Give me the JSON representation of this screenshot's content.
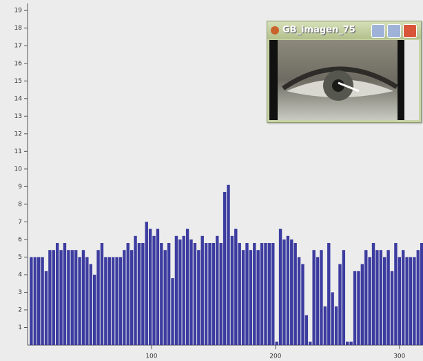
{
  "window": {
    "title": "GB_imagen_75"
  },
  "chart_data": {
    "type": "bar",
    "color": "#3c3ca0",
    "x": [
      3,
      6,
      9,
      12,
      15,
      18,
      21,
      24,
      27,
      30,
      33,
      36,
      39,
      42,
      45,
      48,
      51,
      54,
      57,
      60,
      63,
      66,
      69,
      72,
      75,
      78,
      81,
      84,
      87,
      90,
      93,
      96,
      99,
      102,
      105,
      108,
      111,
      114,
      117,
      120,
      123,
      126,
      129,
      132,
      135,
      138,
      141,
      144,
      147,
      150,
      153,
      156,
      159,
      162,
      165,
      168,
      171,
      174,
      177,
      180,
      183,
      186,
      189,
      192,
      195,
      198,
      201,
      204,
      207,
      210,
      213,
      216,
      219,
      222,
      225,
      228,
      231,
      234,
      237,
      240,
      243,
      246,
      249,
      252,
      255,
      258,
      261,
      264,
      267,
      270,
      273,
      276,
      279,
      282,
      285,
      288,
      291,
      294,
      297,
      300,
      303,
      306,
      309,
      312,
      315,
      318
    ],
    "values": [
      5,
      5,
      5,
      5,
      4.2,
      5.4,
      5.4,
      5.8,
      5.4,
      5.8,
      5.4,
      5.4,
      5.4,
      5,
      5.4,
      5,
      4.6,
      4,
      5.4,
      5.8,
      5,
      5,
      5,
      5,
      5,
      5.4,
      5.8,
      5.4,
      6.2,
      5.8,
      5.8,
      7,
      6.6,
      6.2,
      6.6,
      5.8,
      5.4,
      5.8,
      3.8,
      6.2,
      6,
      6.2,
      6.6,
      6,
      5.8,
      5.4,
      6.2,
      5.8,
      5.8,
      5.8,
      6.2,
      5.8,
      8.7,
      9.1,
      6.2,
      6.6,
      5.8,
      5.4,
      5.8,
      5.4,
      5.8,
      5.4,
      5.8,
      5.8,
      5.8,
      5.8,
      0.2,
      6.6,
      6,
      6.2,
      6,
      5.8,
      5,
      4.6,
      1.7,
      0.2,
      5.4,
      5,
      5.4,
      2.2,
      5.8,
      3,
      2.2,
      4.6,
      5.4,
      0.2,
      0.2,
      4.2,
      4.2,
      4.6,
      5.4,
      5,
      5.8,
      5.4,
      5.4,
      5,
      5.4,
      4.2,
      5.8,
      5,
      5.4,
      5,
      5,
      5,
      5.4,
      5.8
    ],
    "xlim": [
      0,
      319
    ],
    "ylim": [
      0,
      19.4
    ],
    "xticks": [
      100,
      200,
      300
    ],
    "yticks": [
      1,
      2,
      3,
      4,
      5,
      6,
      7,
      8,
      9,
      10,
      11,
      12,
      13,
      14,
      15,
      16,
      17,
      18,
      19
    ]
  }
}
